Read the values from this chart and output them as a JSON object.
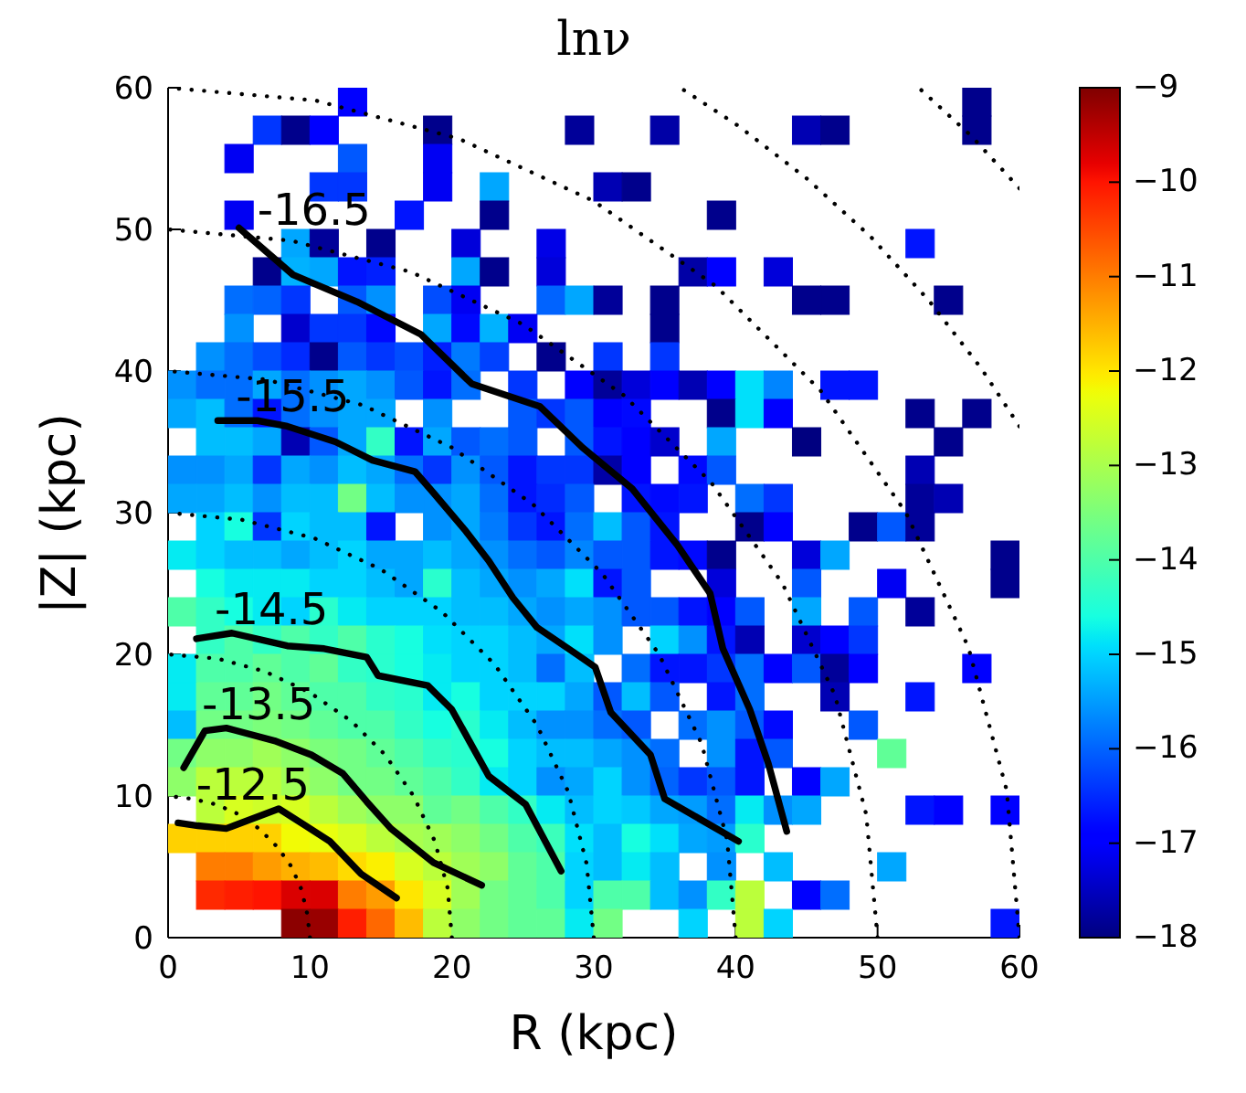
{
  "chart_data": {
    "type": "heatmap",
    "title": "lnν",
    "xlabel": "R (kpc)",
    "ylabel": "|Z| (kpc)",
    "xlim": [
      0,
      60
    ],
    "ylim": [
      0,
      60
    ],
    "xticks": [
      0,
      10,
      20,
      30,
      40,
      50,
      60
    ],
    "yticks": [
      0,
      10,
      20,
      30,
      40,
      50,
      60
    ],
    "clim": [
      -18,
      -9
    ],
    "cticks": [
      -18,
      -17,
      -16,
      -15,
      -14,
      -13,
      -12,
      -11,
      -10,
      -9
    ],
    "cells": [
      [
        null,
        null,
        null,
        null,
        null,
        null,
        -17.0,
        null,
        null,
        null,
        null,
        null,
        null,
        null,
        null,
        null,
        null,
        null,
        null,
        null,
        null,
        null,
        null,
        null,
        null,
        null,
        null,
        null,
        -17.9,
        null
      ],
      [
        null,
        null,
        null,
        -16.4,
        -17.9,
        -16.9,
        null,
        null,
        null,
        -17.9,
        null,
        null,
        null,
        null,
        -17.8,
        null,
        null,
        -17.7,
        null,
        null,
        null,
        null,
        -17.6,
        -17.9,
        null,
        null,
        null,
        null,
        -17.9,
        null
      ],
      [
        null,
        null,
        -17.1,
        null,
        null,
        null,
        -16.1,
        null,
        null,
        -17.1,
        null,
        null,
        null,
        null,
        null,
        null,
        null,
        null,
        null,
        null,
        null,
        null,
        null,
        null,
        null,
        null,
        null,
        null,
        null,
        null
      ],
      [
        null,
        null,
        null,
        null,
        null,
        -16.4,
        -16.4,
        null,
        null,
        -17.1,
        null,
        -15.4,
        null,
        null,
        null,
        -17.6,
        -17.9,
        null,
        null,
        null,
        null,
        null,
        null,
        null,
        null,
        null,
        null,
        null,
        null,
        null
      ],
      [
        null,
        null,
        -17.1,
        null,
        null,
        null,
        null,
        null,
        -16.7,
        null,
        null,
        -17.9,
        null,
        null,
        null,
        null,
        null,
        null,
        null,
        -17.9,
        null,
        null,
        null,
        null,
        null,
        null,
        null,
        null,
        null,
        null
      ],
      [
        null,
        null,
        null,
        null,
        -15.4,
        -17.8,
        null,
        -17.9,
        null,
        null,
        -17.3,
        null,
        null,
        -17.2,
        null,
        null,
        null,
        null,
        null,
        null,
        null,
        null,
        null,
        null,
        null,
        null,
        -16.7,
        null,
        null,
        null
      ],
      [
        null,
        null,
        null,
        -17.9,
        -15.3,
        -15.4,
        -16.7,
        -16.6,
        null,
        null,
        -15.4,
        -17.9,
        null,
        -17.3,
        null,
        null,
        null,
        null,
        -17.7,
        -17.0,
        null,
        -17.3,
        null,
        null,
        null,
        null,
        null,
        null,
        null,
        null
      ],
      [
        null,
        null,
        -15.9,
        -16.0,
        -16.4,
        null,
        -16.1,
        -15.6,
        null,
        -16.2,
        -17.1,
        null,
        null,
        -16.0,
        -15.4,
        -17.8,
        null,
        -17.9,
        null,
        null,
        null,
        null,
        -17.9,
        -17.9,
        null,
        null,
        null,
        -17.9,
        null,
        null
      ],
      [
        null,
        null,
        -15.6,
        null,
        -17.4,
        -16.4,
        -16.4,
        -16.8,
        null,
        -15.4,
        -16.8,
        -15.3,
        -17.1,
        null,
        null,
        null,
        null,
        -17.9,
        null,
        null,
        null,
        null,
        null,
        null,
        null,
        null,
        null,
        null,
        null,
        null
      ],
      [
        null,
        -15.6,
        -15.9,
        -16.2,
        -16.5,
        -17.9,
        -16.1,
        -16.4,
        -16.2,
        -16.6,
        -15.8,
        -16.3,
        null,
        -17.9,
        null,
        -16.4,
        null,
        -16.4,
        null,
        null,
        null,
        null,
        null,
        null,
        null,
        null,
        null,
        null,
        null,
        null
      ],
      [
        -15.6,
        -15.9,
        -15.9,
        -15.4,
        -15.9,
        -15.6,
        -15.4,
        -15.6,
        -16.1,
        -16.7,
        -15.9,
        null,
        -16.4,
        null,
        -17.0,
        -17.8,
        -17.3,
        -17.0,
        -17.6,
        -17.0,
        -14.9,
        -15.7,
        null,
        -16.7,
        -16.7,
        null,
        null,
        null,
        null,
        null
      ],
      [
        -15.4,
        -15.2,
        -15.9,
        -16.7,
        -15.9,
        -15.6,
        -15.4,
        -15.4,
        null,
        -15.6,
        null,
        null,
        -16.1,
        -16.4,
        -16.1,
        -17.0,
        -16.8,
        null,
        null,
        -17.9,
        -14.9,
        -17.0,
        null,
        null,
        null,
        null,
        -17.9,
        null,
        -17.9,
        null
      ],
      [
        null,
        -15.2,
        -15.2,
        -15.4,
        -17.6,
        -16.1,
        -15.4,
        -14.3,
        -16.7,
        -15.4,
        -16.1,
        -15.9,
        -16.1,
        null,
        -16.1,
        -16.7,
        -17.0,
        -17.4,
        null,
        -15.4,
        null,
        null,
        -18.0,
        null,
        null,
        null,
        null,
        -17.9,
        null,
        null
      ],
      [
        -15.6,
        -15.6,
        -15.4,
        -16.4,
        -15.4,
        -15.6,
        -15.2,
        -15.4,
        -15.9,
        -16.4,
        -15.6,
        -16.1,
        -16.7,
        -16.4,
        -16.4,
        -17.7,
        -17.0,
        null,
        -16.8,
        -16.1,
        null,
        null,
        null,
        null,
        null,
        null,
        -17.6,
        null,
        null,
        null
      ],
      [
        -15.4,
        -15.4,
        -15.2,
        -15.6,
        -15.2,
        -15.2,
        -13.6,
        -15.2,
        -15.6,
        -15.6,
        -15.4,
        -15.9,
        -16.7,
        -16.5,
        -16.1,
        null,
        -16.7,
        -16.8,
        -16.7,
        null,
        -15.9,
        -16.4,
        null,
        null,
        null,
        null,
        -17.8,
        -17.6,
        null,
        null
      ],
      [
        null,
        -15.0,
        -14.6,
        -16.4,
        -15.0,
        -15.2,
        -15.2,
        -16.7,
        null,
        -15.6,
        -15.4,
        -15.8,
        -16.4,
        -16.7,
        -15.9,
        -15.2,
        -16.1,
        -16.7,
        null,
        null,
        -17.9,
        -17.0,
        null,
        null,
        -17.9,
        -16.1,
        -17.8,
        null,
        null,
        null
      ],
      [
        -14.8,
        -15.0,
        -15.2,
        -15.2,
        -15.4,
        -15.2,
        -15.0,
        -15.4,
        -15.4,
        -15.2,
        -15.4,
        -15.6,
        -15.9,
        -16.1,
        -15.7,
        -16.1,
        -16.1,
        -16.7,
        -16.8,
        -17.9,
        null,
        null,
        -17.3,
        -15.4,
        null,
        null,
        null,
        null,
        null,
        -17.9
      ],
      [
        null,
        -14.6,
        -14.8,
        -14.8,
        -14.8,
        -15.0,
        -15.0,
        -15.2,
        -15.4,
        -14.4,
        -15.2,
        -15.4,
        -15.6,
        -15.4,
        -14.9,
        -16.7,
        -16.1,
        null,
        null,
        -17.3,
        null,
        null,
        -16.1,
        null,
        null,
        -17.1,
        null,
        null,
        null,
        -17.9
      ],
      [
        -14.0,
        -14.3,
        -14.6,
        -14.8,
        -15.0,
        -14.4,
        -14.8,
        -15.0,
        -15.0,
        -15.0,
        -15.2,
        -15.2,
        -15.4,
        -15.6,
        -15.4,
        -15.6,
        -16.1,
        -16.1,
        -16.7,
        -17.0,
        -16.1,
        null,
        -15.4,
        null,
        -16.1,
        null,
        -17.8,
        null,
        null,
        null
      ],
      [
        null,
        -14.3,
        -14.0,
        -14.3,
        -14.0,
        -14.3,
        -14.0,
        -14.4,
        -14.6,
        -14.9,
        -15.0,
        -15.0,
        -15.2,
        -15.4,
        -14.9,
        -15.6,
        null,
        -15.0,
        -15.6,
        -16.7,
        -17.6,
        null,
        -17.4,
        -17.0,
        -16.4,
        null,
        null,
        null,
        null,
        null
      ],
      [
        -14.8,
        -14.0,
        -14.0,
        -13.8,
        -14.0,
        -13.8,
        -14.3,
        -14.4,
        -14.6,
        -14.8,
        -15.0,
        -15.0,
        -15.2,
        -15.9,
        -15.2,
        null,
        -15.9,
        -16.7,
        -16.7,
        -16.4,
        -15.9,
        -17.0,
        -16.1,
        -17.8,
        -17.0,
        null,
        null,
        null,
        -17.0,
        null
      ],
      [
        -14.8,
        -13.8,
        -13.8,
        -13.6,
        -13.8,
        -14.0,
        -14.0,
        -14.3,
        -14.4,
        -14.8,
        -14.6,
        -15.0,
        -15.0,
        -15.0,
        -15.4,
        -16.1,
        -15.2,
        -16.1,
        null,
        -16.7,
        -15.9,
        null,
        null,
        -17.6,
        null,
        null,
        -16.7,
        null,
        null,
        null
      ],
      [
        -15.2,
        -13.6,
        -13.6,
        -13.5,
        -13.6,
        -13.8,
        -14.0,
        -14.0,
        -14.3,
        -14.6,
        -14.4,
        -14.8,
        -15.2,
        -15.6,
        -15.6,
        -15.9,
        -16.1,
        null,
        -15.9,
        -15.6,
        -16.1,
        -16.8,
        null,
        null,
        -16.1,
        null,
        null,
        null,
        null,
        null
      ],
      [
        -13.6,
        -13.3,
        -13.3,
        -13.1,
        -13.3,
        -13.5,
        -13.6,
        -13.8,
        -14.0,
        -14.3,
        -14.4,
        -14.6,
        -15.0,
        -15.2,
        -15.2,
        -15.4,
        -15.6,
        -15.9,
        null,
        -15.6,
        -16.7,
        -16.1,
        null,
        null,
        null,
        -13.8,
        null,
        null,
        null,
        null
      ],
      [
        -13.3,
        -12.8,
        -12.8,
        -12.8,
        -13.1,
        -13.3,
        -13.6,
        -13.6,
        -13.8,
        -14.0,
        -14.3,
        -14.8,
        -15.0,
        -15.6,
        -15.4,
        -15.0,
        -15.6,
        -16.0,
        -16.4,
        -16.1,
        -16.7,
        null,
        -17.0,
        -15.4,
        null,
        null,
        null,
        null,
        null,
        null
      ],
      [
        null,
        -12.8,
        -12.5,
        -12.6,
        -12.5,
        -12.8,
        -13.1,
        -13.3,
        -13.3,
        -13.8,
        -13.6,
        -14.0,
        -14.3,
        -14.8,
        -15.2,
        -15.0,
        -15.1,
        -15.4,
        -15.5,
        -15.9,
        -14.8,
        -15.6,
        -15.4,
        null,
        null,
        null,
        -16.7,
        -17.0,
        null,
        -17.0
      ],
      [
        -11.8,
        -11.8,
        -11.8,
        -11.8,
        -12.2,
        -12.3,
        -12.5,
        -12.8,
        -13.0,
        -13.1,
        -13.3,
        -13.6,
        -14.0,
        -14.2,
        -14.9,
        -15.2,
        -14.6,
        -14.9,
        -15.4,
        -15.5,
        -14.4,
        null,
        null,
        null,
        null,
        null,
        null,
        null,
        null,
        null
      ],
      [
        null,
        -11.0,
        -11.0,
        -11.3,
        -11.5,
        -11.6,
        -11.9,
        -12.1,
        -12.5,
        -12.8,
        -13.1,
        -13.3,
        -13.8,
        -14.0,
        -15.0,
        -15.2,
        -14.8,
        -15.2,
        null,
        -15.6,
        null,
        -15.2,
        null,
        null,
        null,
        -15.4,
        null,
        null,
        null,
        null
      ],
      [
        null,
        -10.2,
        -10.1,
        -10.0,
        -9.7,
        -9.7,
        -11.0,
        -11.3,
        -12.0,
        -12.5,
        -13.1,
        -13.6,
        -13.8,
        -14.0,
        -15.0,
        -14.0,
        -14.0,
        -15.2,
        -15.6,
        -14.3,
        -12.8,
        null,
        -17.0,
        -15.9,
        null,
        null,
        null,
        null,
        null,
        null
      ],
      [
        null,
        null,
        null,
        null,
        -9.1,
        -9.2,
        -10.1,
        -10.8,
        -11.6,
        -12.8,
        -13.3,
        -13.6,
        -13.8,
        -13.8,
        -14.8,
        -13.6,
        null,
        null,
        -15.0,
        null,
        -12.8,
        -15.0,
        null,
        null,
        null,
        null,
        null,
        null,
        null,
        -16.7
      ]
    ],
    "series": [
      {
        "type": "line",
        "color": "#000000",
        "line_style": "dotted",
        "x": [
          10,
          9.8,
          9.4,
          8.7,
          7.7,
          6.4,
          5,
          3.4,
          1.7,
          0
        ],
        "values": [
          0,
          1.7,
          3.4,
          5,
          6.4,
          7.7,
          8.7,
          9.4,
          9.8,
          10
        ]
      },
      {
        "type": "line",
        "color": "#000000",
        "line_style": "dotted",
        "x": [
          20,
          19.7,
          18.8,
          17.3,
          15.3,
          12.9,
          10,
          6.8,
          3.5,
          0
        ],
        "values": [
          0,
          3.5,
          6.8,
          10,
          12.9,
          15.3,
          17.3,
          18.8,
          19.7,
          20
        ]
      },
      {
        "type": "line",
        "color": "#000000",
        "line_style": "dotted",
        "x": [
          30,
          29.5,
          28.2,
          26,
          23,
          19.3,
          15,
          10.3,
          5.2,
          0
        ],
        "values": [
          0,
          5.2,
          10.3,
          15,
          19.3,
          23,
          26,
          28.2,
          29.5,
          30
        ]
      },
      {
        "type": "line",
        "color": "#000000",
        "line_style": "dotted",
        "x": [
          40,
          39.4,
          37.6,
          34.6,
          30.6,
          25.7,
          20,
          13.7,
          6.9,
          0
        ],
        "values": [
          0,
          6.9,
          13.7,
          20,
          25.7,
          30.6,
          34.6,
          37.6,
          39.4,
          40
        ]
      },
      {
        "type": "line",
        "color": "#000000",
        "line_style": "dotted",
        "x": [
          50,
          49.2,
          47,
          43.3,
          38.3,
          32.1,
          25,
          17.1,
          8.7,
          0
        ],
        "values": [
          0,
          8.7,
          17.1,
          25,
          32.1,
          38.3,
          43.3,
          47,
          49.2,
          50
        ]
      },
      {
        "type": "line",
        "color": "#000000",
        "line_style": "dotted",
        "x": [
          60,
          59.1,
          56.4,
          52,
          46,
          38.6,
          30,
          20.5,
          10.4,
          0
        ],
        "values": [
          0,
          10.4,
          20.5,
          30,
          38.6,
          46,
          52,
          56.4,
          59.1,
          60
        ]
      },
      {
        "type": "line",
        "color": "#000000",
        "line_style": "dotted",
        "x": [
          60,
          57.3,
          53.6,
          49.5,
          45,
          40.2,
          36.1
        ],
        "values": [
          36.1,
          40.2,
          45,
          49.5,
          53.6,
          57.3,
          60
        ]
      },
      {
        "type": "line",
        "color": "#000000",
        "line_style": "dotted",
        "x": [
          60,
          56.6,
          52.9
        ],
        "values": [
          52.9,
          56.6,
          60
        ]
      },
      {
        "name": "-16.5",
        "type": "line",
        "color": "#000000",
        "x": [
          5.0,
          8.8,
          13.3,
          17.8,
          21.4,
          26.2,
          29.2,
          32.7,
          35.9,
          38.2,
          39.1,
          41.0,
          42.3,
          43.6
        ],
        "values": [
          50.1,
          46.8,
          44.9,
          42.6,
          39.1,
          37.5,
          34.6,
          31.7,
          27.7,
          24.3,
          20.4,
          16.1,
          12.3,
          7.5
        ]
      },
      {
        "name": "-15.5",
        "type": "line",
        "color": "#000000",
        "x": [
          3.5,
          6.3,
          8.4,
          11.8,
          14.4,
          17.4,
          18.7,
          20.9,
          22.6,
          24.3,
          26.0,
          28.8,
          30.1,
          31.2,
          34.0,
          35.0,
          40.2
        ],
        "values": [
          36.5,
          36.5,
          36.1,
          35.0,
          33.7,
          32.9,
          31.4,
          28.8,
          26.6,
          24.0,
          21.9,
          20.0,
          19.1,
          15.9,
          12.9,
          9.8,
          6.8
        ]
      },
      {
        "name": "-14.5",
        "type": "line",
        "color": "#000000",
        "x": [
          2.0,
          4.5,
          8.4,
          11.0,
          14.0,
          14.8,
          18.3,
          20.0,
          22.6,
          25.2,
          27.7
        ],
        "values": [
          21.1,
          21.5,
          20.6,
          20.4,
          19.8,
          18.5,
          17.8,
          16.1,
          11.4,
          9.4,
          4.7
        ]
      },
      {
        "name": "-13.5",
        "type": "line",
        "color": "#000000",
        "x": [
          1.1,
          2.6,
          4.1,
          7.5,
          10.1,
          12.3,
          14.0,
          15.7,
          18.7,
          22.1
        ],
        "values": [
          12.0,
          14.6,
          14.8,
          13.9,
          12.9,
          11.6,
          9.6,
          7.7,
          5.3,
          3.7
        ]
      },
      {
        "name": "-12.5",
        "type": "line",
        "color": "#000000",
        "x": [
          0.7,
          2.1,
          4.1,
          7.8,
          9.7,
          11.4,
          13.6,
          16.1
        ],
        "values": [
          8.1,
          7.9,
          7.7,
          9.1,
          7.9,
          6.8,
          4.5,
          2.8
        ]
      }
    ]
  }
}
